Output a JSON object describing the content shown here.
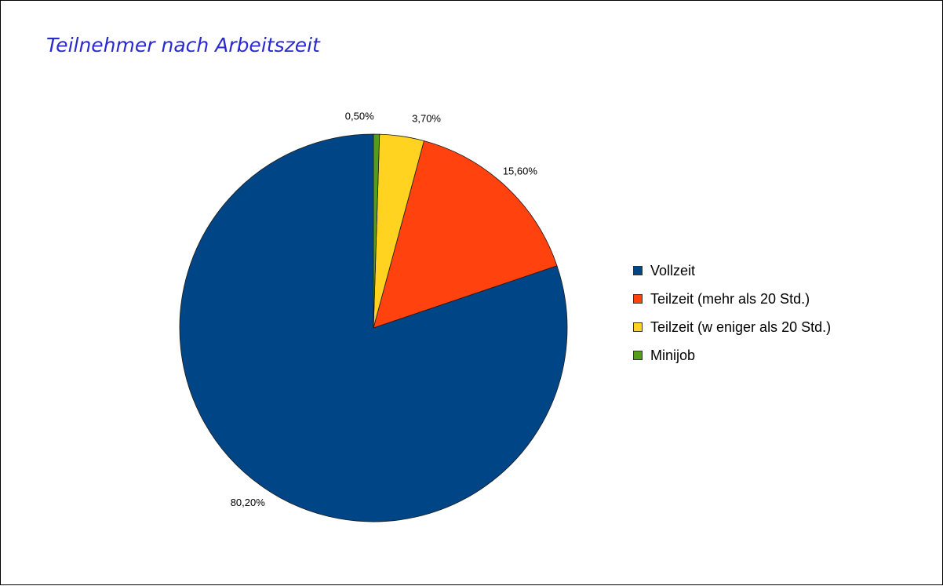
{
  "chart_data": {
    "type": "pie",
    "title": "Teilnehmer nach Arbeitszeit",
    "categories": [
      "Vollzeit",
      "Teilzeit (mehr als 20 Std.)",
      "Teilzeit (w eniger als 20 Std.)",
      "Minijob"
    ],
    "values": [
      80.2,
      15.6,
      3.7,
      0.5
    ],
    "labels": [
      "80,20%",
      "15,60%",
      "3,70%",
      "0,50%"
    ],
    "colors": [
      "#004586",
      "#ff420e",
      "#ffd320",
      "#579d1c"
    ],
    "start_angle_deg": 0,
    "direction": "counterclockwise",
    "legend_position": "right"
  }
}
